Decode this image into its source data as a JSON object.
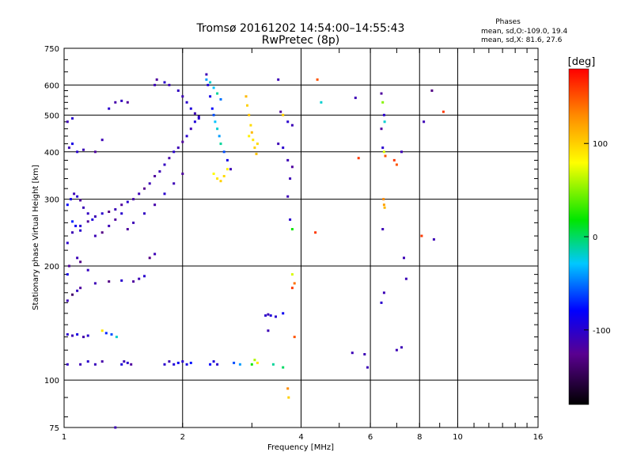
{
  "chart_data": {
    "type": "scatter",
    "title": "Tromsø 20161202 14:54:00–14:55:43",
    "subtitle": "RwPretec (8p)",
    "xlabel": "Frequency [MHz]",
    "ylabel": "Stationary phase Virtual Height [km]",
    "x_scale": "log",
    "y_scale": "log",
    "xlim": [
      1,
      16
    ],
    "ylim": [
      75,
      750
    ],
    "x_ticks": [
      1,
      2,
      4,
      6,
      8,
      10,
      16
    ],
    "x_tick_labels": [
      "1",
      "2",
      "4",
      "6",
      "8",
      "10",
      "16"
    ],
    "y_ticks": [
      75,
      100,
      200,
      300,
      400,
      500,
      600,
      750
    ],
    "y_tick_labels": [
      "75",
      "100",
      "200",
      "300",
      "400",
      "500",
      "600",
      "750"
    ],
    "grid": true,
    "stats": {
      "heading": "Phases",
      "line1": "mean, sd,O:-109.0, 19.4",
      "line2": "mean, sd,X:  81.6, 27.6"
    },
    "colorbar": {
      "label": "[deg]",
      "range": [
        -180,
        180
      ],
      "ticks": [
        100,
        0,
        -100
      ],
      "tick_labels": [
        "100",
        "0",
        "-100"
      ],
      "colormap": "rainbow"
    },
    "series": [
      {
        "points": [
          [
            1.02,
            110,
            -105
          ],
          [
            1.1,
            110,
            -110
          ],
          [
            1.15,
            112,
            -100
          ],
          [
            1.2,
            110,
            -108
          ],
          [
            1.25,
            112,
            -115
          ],
          [
            1.4,
            110,
            -95
          ],
          [
            1.42,
            112,
            -110
          ],
          [
            1.45,
            111,
            -100
          ],
          [
            1.48,
            110,
            -120
          ],
          [
            1.8,
            110,
            -100
          ],
          [
            1.85,
            112,
            -110
          ],
          [
            1.9,
            110,
            -95
          ],
          [
            1.95,
            111,
            -85
          ],
          [
            2.0,
            112,
            -100
          ],
          [
            2.05,
            110,
            -90
          ],
          [
            2.1,
            111,
            -75
          ],
          [
            2.35,
            110,
            -80
          ],
          [
            2.4,
            112,
            -95
          ],
          [
            2.45,
            110,
            -100
          ],
          [
            2.7,
            111,
            -60
          ],
          [
            2.8,
            110,
            -40
          ],
          [
            3.0,
            110,
            20
          ],
          [
            3.05,
            113,
            60
          ],
          [
            3.1,
            111,
            90
          ],
          [
            3.4,
            110,
            -10
          ],
          [
            3.6,
            108,
            0
          ],
          [
            1.02,
            132,
            -100
          ],
          [
            1.05,
            131,
            -110
          ],
          [
            1.08,
            132,
            -90
          ],
          [
            1.12,
            130,
            -115
          ],
          [
            1.15,
            131,
            -100
          ],
          [
            1.25,
            135,
            90
          ],
          [
            1.28,
            133,
            -70
          ],
          [
            1.32,
            132,
            -60
          ],
          [
            1.36,
            130,
            -20
          ],
          [
            3.25,
            148,
            -100
          ],
          [
            3.3,
            149,
            -110
          ],
          [
            3.35,
            148,
            -95
          ],
          [
            3.45,
            147,
            -100
          ],
          [
            3.6,
            150,
            -85
          ],
          [
            3.3,
            135,
            -110
          ],
          [
            3.85,
            130,
            150
          ],
          [
            1.02,
            162,
            -110
          ],
          [
            1.05,
            168,
            -140
          ],
          [
            1.08,
            172,
            -105
          ],
          [
            1.1,
            175,
            -120
          ],
          [
            1.2,
            180,
            -110
          ],
          [
            1.3,
            182,
            -130
          ],
          [
            1.4,
            183,
            -100
          ],
          [
            1.5,
            182,
            -120
          ],
          [
            1.55,
            185,
            -110
          ],
          [
            1.6,
            188,
            -100
          ],
          [
            1.65,
            210,
            -130
          ],
          [
            1.7,
            215,
            -110
          ],
          [
            1.02,
            190,
            -90
          ],
          [
            1.03,
            200,
            -120
          ],
          [
            1.08,
            210,
            -110
          ],
          [
            1.1,
            205,
            -130
          ],
          [
            1.15,
            195,
            -105
          ],
          [
            1.02,
            230,
            -100
          ],
          [
            1.05,
            245,
            -110
          ],
          [
            1.1,
            255,
            -100
          ],
          [
            1.15,
            262,
            -120
          ],
          [
            1.2,
            270,
            -110
          ],
          [
            1.25,
            275,
            -100
          ],
          [
            1.3,
            278,
            -130
          ],
          [
            1.35,
            282,
            -110
          ],
          [
            1.4,
            290,
            -120
          ],
          [
            1.45,
            295,
            -100
          ],
          [
            1.5,
            300,
            -115
          ],
          [
            1.55,
            310,
            -110
          ],
          [
            1.6,
            320,
            -125
          ],
          [
            1.65,
            330,
            -110
          ],
          [
            1.7,
            345,
            -120
          ],
          [
            1.75,
            355,
            -110
          ],
          [
            1.8,
            370,
            -105
          ],
          [
            1.85,
            385,
            -115
          ],
          [
            1.9,
            400,
            -100
          ],
          [
            1.95,
            410,
            -110
          ],
          [
            2.0,
            425,
            -120
          ],
          [
            2.05,
            440,
            -100
          ],
          [
            2.1,
            460,
            -110
          ],
          [
            2.15,
            480,
            -95
          ],
          [
            2.2,
            495,
            -105
          ],
          [
            1.02,
            290,
            -80
          ],
          [
            1.04,
            300,
            -90
          ],
          [
            1.06,
            310,
            -110
          ],
          [
            1.08,
            305,
            -100
          ],
          [
            1.1,
            298,
            -120
          ],
          [
            1.12,
            285,
            -110
          ],
          [
            1.15,
            275,
            -105
          ],
          [
            1.18,
            265,
            -95
          ],
          [
            1.05,
            262,
            -70
          ],
          [
            1.07,
            255,
            -85
          ],
          [
            1.1,
            248,
            -100
          ],
          [
            1.3,
            255,
            -110
          ],
          [
            1.35,
            265,
            -120
          ],
          [
            1.4,
            275,
            -100
          ],
          [
            1.2,
            240,
            -110
          ],
          [
            1.25,
            245,
            -130
          ],
          [
            1.45,
            250,
            -120
          ],
          [
            1.5,
            260,
            -110
          ],
          [
            1.6,
            275,
            -105
          ],
          [
            1.7,
            290,
            -115
          ],
          [
            1.8,
            310,
            -100
          ],
          [
            1.9,
            330,
            -110
          ],
          [
            2.0,
            350,
            -120
          ],
          [
            1.03,
            410,
            -110
          ],
          [
            1.05,
            420,
            -90
          ],
          [
            1.08,
            400,
            -100
          ],
          [
            1.12,
            405,
            -110
          ],
          [
            1.2,
            400,
            -120
          ],
          [
            1.25,
            430,
            -110
          ],
          [
            1.3,
            520,
            -100
          ],
          [
            1.35,
            540,
            -115
          ],
          [
            1.4,
            545,
            -105
          ],
          [
            1.45,
            540,
            -120
          ],
          [
            1.02,
            480,
            -110
          ],
          [
            1.05,
            490,
            -100
          ],
          [
            1.7,
            600,
            -110
          ],
          [
            1.72,
            620,
            -120
          ],
          [
            1.8,
            610,
            -100
          ],
          [
            1.85,
            600,
            -110
          ],
          [
            1.95,
            580,
            -105
          ],
          [
            2.0,
            560,
            -110
          ],
          [
            2.05,
            540,
            -100
          ],
          [
            2.1,
            520,
            -95
          ],
          [
            2.15,
            505,
            -110
          ],
          [
            2.2,
            490,
            -100
          ],
          [
            2.3,
            640,
            -110
          ],
          [
            2.32,
            600,
            -95
          ],
          [
            2.35,
            560,
            -90
          ],
          [
            2.38,
            520,
            -80
          ],
          [
            2.4,
            500,
            -60
          ],
          [
            2.42,
            480,
            -30
          ],
          [
            2.45,
            460,
            -20
          ],
          [
            2.48,
            440,
            -40
          ],
          [
            2.5,
            420,
            -10
          ],
          [
            2.55,
            400,
            -60
          ],
          [
            2.6,
            380,
            -90
          ],
          [
            2.65,
            360,
            -110
          ],
          [
            2.3,
            620,
            -40
          ],
          [
            2.35,
            610,
            -20
          ],
          [
            2.4,
            590,
            -30
          ],
          [
            2.45,
            570,
            -10
          ],
          [
            2.5,
            550,
            -50
          ],
          [
            2.4,
            350,
            80
          ],
          [
            2.45,
            340,
            90
          ],
          [
            2.5,
            335,
            100
          ],
          [
            2.55,
            345,
            95
          ],
          [
            2.6,
            360,
            85
          ],
          [
            2.9,
            560,
            110
          ],
          [
            2.92,
            530,
            100
          ],
          [
            2.95,
            500,
            105
          ],
          [
            2.98,
            470,
            95
          ],
          [
            3.0,
            450,
            110
          ],
          [
            3.02,
            430,
            90
          ],
          [
            3.05,
            410,
            100
          ],
          [
            3.08,
            395,
            105
          ],
          [
            3.1,
            420,
            95
          ],
          [
            2.95,
            440,
            85
          ],
          [
            3.5,
            420,
            -110
          ],
          [
            3.6,
            410,
            -100
          ],
          [
            3.7,
            380,
            -110
          ],
          [
            3.8,
            365,
            -120
          ],
          [
            3.75,
            340,
            -110
          ],
          [
            3.5,
            620,
            -110
          ],
          [
            3.55,
            510,
            -120
          ],
          [
            3.6,
            500,
            100
          ],
          [
            3.7,
            480,
            -100
          ],
          [
            3.8,
            470,
            -110
          ],
          [
            3.7,
            305,
            -110
          ],
          [
            3.75,
            265,
            -100
          ],
          [
            3.8,
            250,
            20
          ],
          [
            3.8,
            190,
            70
          ],
          [
            3.85,
            180,
            140
          ],
          [
            3.8,
            175,
            160
          ],
          [
            3.7,
            95,
            130
          ],
          [
            3.72,
            90,
            100
          ],
          [
            4.4,
            620,
            150
          ],
          [
            4.5,
            540,
            -20
          ],
          [
            4.35,
            245,
            160
          ],
          [
            5.5,
            555,
            -110
          ],
          [
            5.6,
            385,
            160
          ],
          [
            5.4,
            118,
            -110
          ],
          [
            5.8,
            117,
            -110
          ],
          [
            5.9,
            108,
            -110
          ],
          [
            6.4,
            570,
            -120
          ],
          [
            6.45,
            540,
            50
          ],
          [
            6.5,
            500,
            -100
          ],
          [
            6.52,
            480,
            -20
          ],
          [
            6.4,
            460,
            -120
          ],
          [
            6.45,
            410,
            -100
          ],
          [
            6.5,
            400,
            70
          ],
          [
            6.55,
            390,
            150
          ],
          [
            6.48,
            300,
            130
          ],
          [
            6.5,
            290,
            120
          ],
          [
            6.52,
            285,
            110
          ],
          [
            6.45,
            250,
            -110
          ],
          [
            6.5,
            170,
            -110
          ],
          [
            6.4,
            160,
            -100
          ],
          [
            6.9,
            380,
            160
          ],
          [
            7.0,
            370,
            150
          ],
          [
            7.2,
            400,
            -110
          ],
          [
            7.3,
            210,
            -110
          ],
          [
            7.4,
            185,
            -110
          ],
          [
            7.0,
            120,
            -110
          ],
          [
            7.2,
            122,
            -110
          ],
          [
            8.1,
            240,
            160
          ],
          [
            8.2,
            480,
            -110
          ],
          [
            8.6,
            580,
            -130
          ],
          [
            8.7,
            235,
            -110
          ],
          [
            9.2,
            510,
            160
          ],
          [
            1.35,
            75,
            -110
          ]
        ]
      }
    ]
  }
}
